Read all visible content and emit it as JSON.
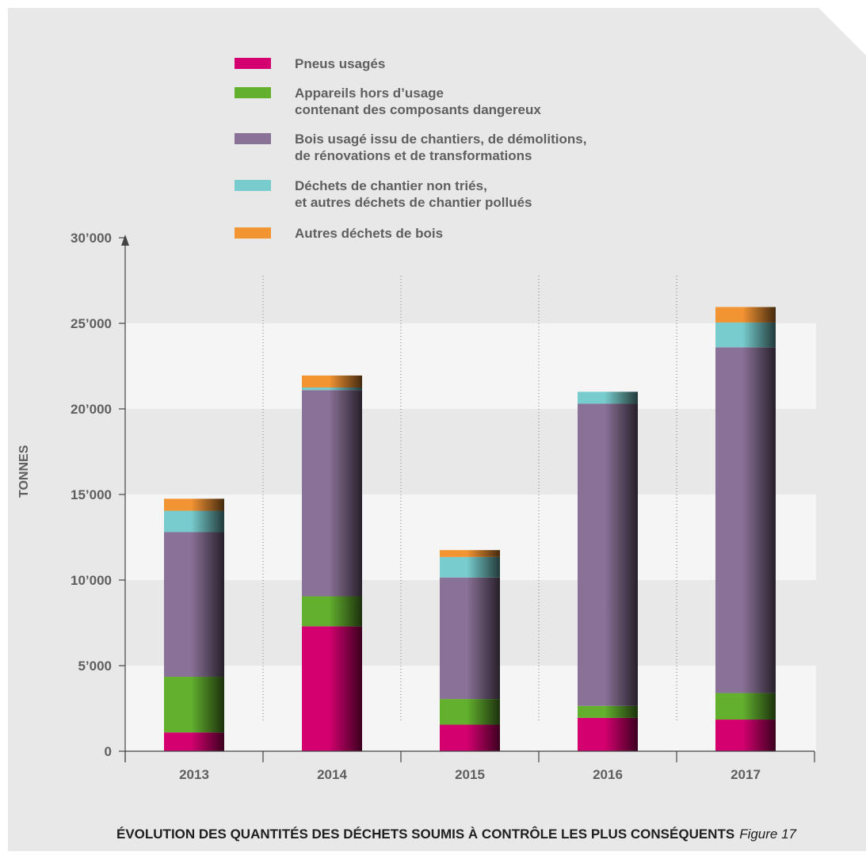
{
  "chart_data": {
    "type": "bar",
    "stacked": true,
    "categories": [
      "2013",
      "2014",
      "2015",
      "2016",
      "2017"
    ],
    "series": [
      {
        "name": "Pneus usagés",
        "color": "#d4006f",
        "values": [
          1100,
          7300,
          1550,
          1950,
          1850
        ]
      },
      {
        "name": "Appareils hors d’usage\ncontenant des composants dangereux",
        "color": "#62b02e",
        "values": [
          3250,
          1750,
          1500,
          700,
          1550
        ]
      },
      {
        "name": "Bois usagé issu de chantiers, de démolitions,\nde rénovations et de transformations",
        "color": "#8a7197",
        "values": [
          8450,
          12050,
          7100,
          17650,
          20200
        ]
      },
      {
        "name": "Déchets de chantier non triés,\net autres déchets de chantier pollués",
        "color": "#78cccd",
        "values": [
          1250,
          150,
          1200,
          700,
          1450
        ]
      },
      {
        "name": "Autres déchets de bois",
        "color": "#f39433",
        "values": [
          700,
          700,
          400,
          0,
          900
        ]
      }
    ],
    "ylabel": "TONNES",
    "xlabel": "",
    "ylim": [
      0,
      30000
    ],
    "yticks": [
      0,
      5000,
      10000,
      15000,
      20000,
      25000,
      30000
    ],
    "ytick_labels": [
      "0",
      "5’000",
      "10’000",
      "15’000",
      "20’000",
      "25’000",
      "30’000"
    ],
    "legend_position": "top",
    "background_bands": true
  },
  "caption": {
    "title": "ÉVOLUTION DES QUANTITÉS DES DÉCHETS SOUMIS À CONTRÔLE LES PLUS CONSÉQUENTS",
    "figure": "Figure 17"
  },
  "colors": {
    "card_background": "#e8e8e8",
    "band_light": "#f5f5f5",
    "band_dark": "#e8e8e8",
    "text": "#5f5f5f"
  }
}
